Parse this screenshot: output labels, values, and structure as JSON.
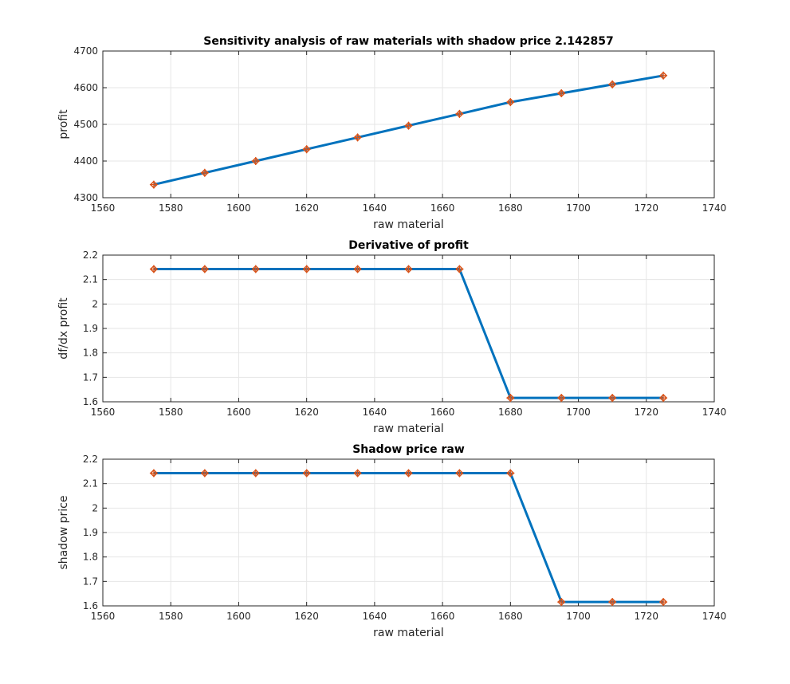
{
  "colors": {
    "line": "#0072BD",
    "marker": "#D95319",
    "grid": "#e6e6e6",
    "axis": "#262626"
  },
  "chart_data": [
    {
      "type": "line",
      "title": "Sensitivity analysis of raw materials with shadow price 2.142857",
      "xlabel": "raw material",
      "ylabel": "profit",
      "xlim": [
        1560,
        1740
      ],
      "ylim": [
        4300,
        4700
      ],
      "xticks": [
        1560,
        1580,
        1600,
        1620,
        1640,
        1660,
        1680,
        1700,
        1720,
        1740
      ],
      "yticks": [
        4300,
        4400,
        4500,
        4600,
        4700
      ],
      "ytick_decimals": 0,
      "grid": true,
      "x": [
        1575,
        1590,
        1605,
        1620,
        1635,
        1650,
        1665,
        1680,
        1695,
        1710,
        1725
      ],
      "values": [
        4335.71,
        4367.86,
        4400.0,
        4432.14,
        4464.29,
        4496.43,
        4528.57,
        4560.71,
        4584.86,
        4609.0,
        4633.14
      ]
    },
    {
      "type": "line",
      "title": "Derivative of profit",
      "xlabel": "raw material",
      "ylabel": "df/dx profit",
      "xlim": [
        1560,
        1740
      ],
      "ylim": [
        1.6,
        2.2
      ],
      "xticks": [
        1560,
        1580,
        1600,
        1620,
        1640,
        1660,
        1680,
        1700,
        1720,
        1740
      ],
      "yticks": [
        1.6,
        1.7,
        1.8,
        1.9,
        2,
        2.1,
        2.2
      ],
      "ytick_decimals": 1,
      "grid": true,
      "x": [
        1575,
        1590,
        1605,
        1620,
        1635,
        1650,
        1665,
        1680,
        1695,
        1710,
        1725
      ],
      "values": [
        2.142857,
        2.142857,
        2.142857,
        2.142857,
        2.142857,
        2.142857,
        2.142857,
        1.616,
        1.616,
        1.616,
        1.616
      ]
    },
    {
      "type": "line",
      "title": "Shadow price raw",
      "xlabel": "raw material",
      "ylabel": "shadow price",
      "xlim": [
        1560,
        1740
      ],
      "ylim": [
        1.6,
        2.2
      ],
      "xticks": [
        1560,
        1580,
        1600,
        1620,
        1640,
        1660,
        1680,
        1700,
        1720,
        1740
      ],
      "yticks": [
        1.6,
        1.7,
        1.8,
        1.9,
        2,
        2.1,
        2.2
      ],
      "ytick_decimals": 1,
      "grid": true,
      "x": [
        1575,
        1590,
        1605,
        1620,
        1635,
        1650,
        1665,
        1680,
        1695,
        1710,
        1725
      ],
      "values": [
        2.142857,
        2.142857,
        2.142857,
        2.142857,
        2.142857,
        2.142857,
        2.142857,
        2.142857,
        1.616,
        1.616,
        1.616
      ]
    }
  ]
}
